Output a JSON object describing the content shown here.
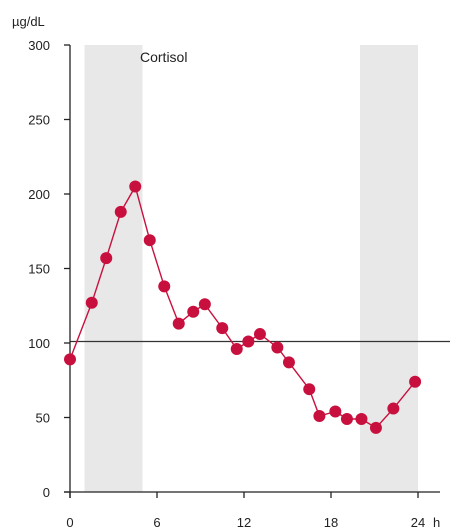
{
  "chart_data": {
    "type": "line",
    "title": "",
    "ylabel_unit": "µg/dL",
    "xlabel_unit": "h",
    "series_label": "Cortisol",
    "xlim": [
      0,
      24
    ],
    "ylim": [
      0,
      300
    ],
    "x_ticks": [
      0,
      6,
      12,
      18,
      24
    ],
    "x_tick_labels": [
      "0",
      "6",
      "12",
      "18",
      "24"
    ],
    "y_ticks": [
      0,
      50,
      100,
      150,
      200,
      250,
      300
    ],
    "y_tick_labels": [
      "0",
      "50",
      "100",
      "150",
      "200",
      "250",
      "300"
    ],
    "reference_line_y": 101,
    "shaded_bands": [
      {
        "x_start": 1,
        "x_end": 5
      },
      {
        "x_start": 20,
        "x_end": 24
      }
    ],
    "grid": false,
    "colors": {
      "series": "#c8103e",
      "band": "#e8e8e8",
      "axis": "#222222"
    },
    "series": [
      {
        "x": [
          0,
          1.5,
          2.5,
          3.5,
          4.5,
          5.5,
          6.5,
          7.5,
          8.5,
          9.3,
          10.5,
          11.5,
          12.3,
          13.1,
          14.3,
          15.1,
          16.5,
          17.2,
          18.3,
          19.1,
          20.1,
          21.1,
          22.3,
          23.8
        ],
        "y": [
          89,
          127,
          157,
          188,
          205,
          169,
          138,
          113,
          121,
          126,
          110,
          96,
          101,
          106,
          97,
          87,
          69,
          51,
          54,
          49,
          49,
          43,
          56,
          74
        ]
      }
    ]
  }
}
